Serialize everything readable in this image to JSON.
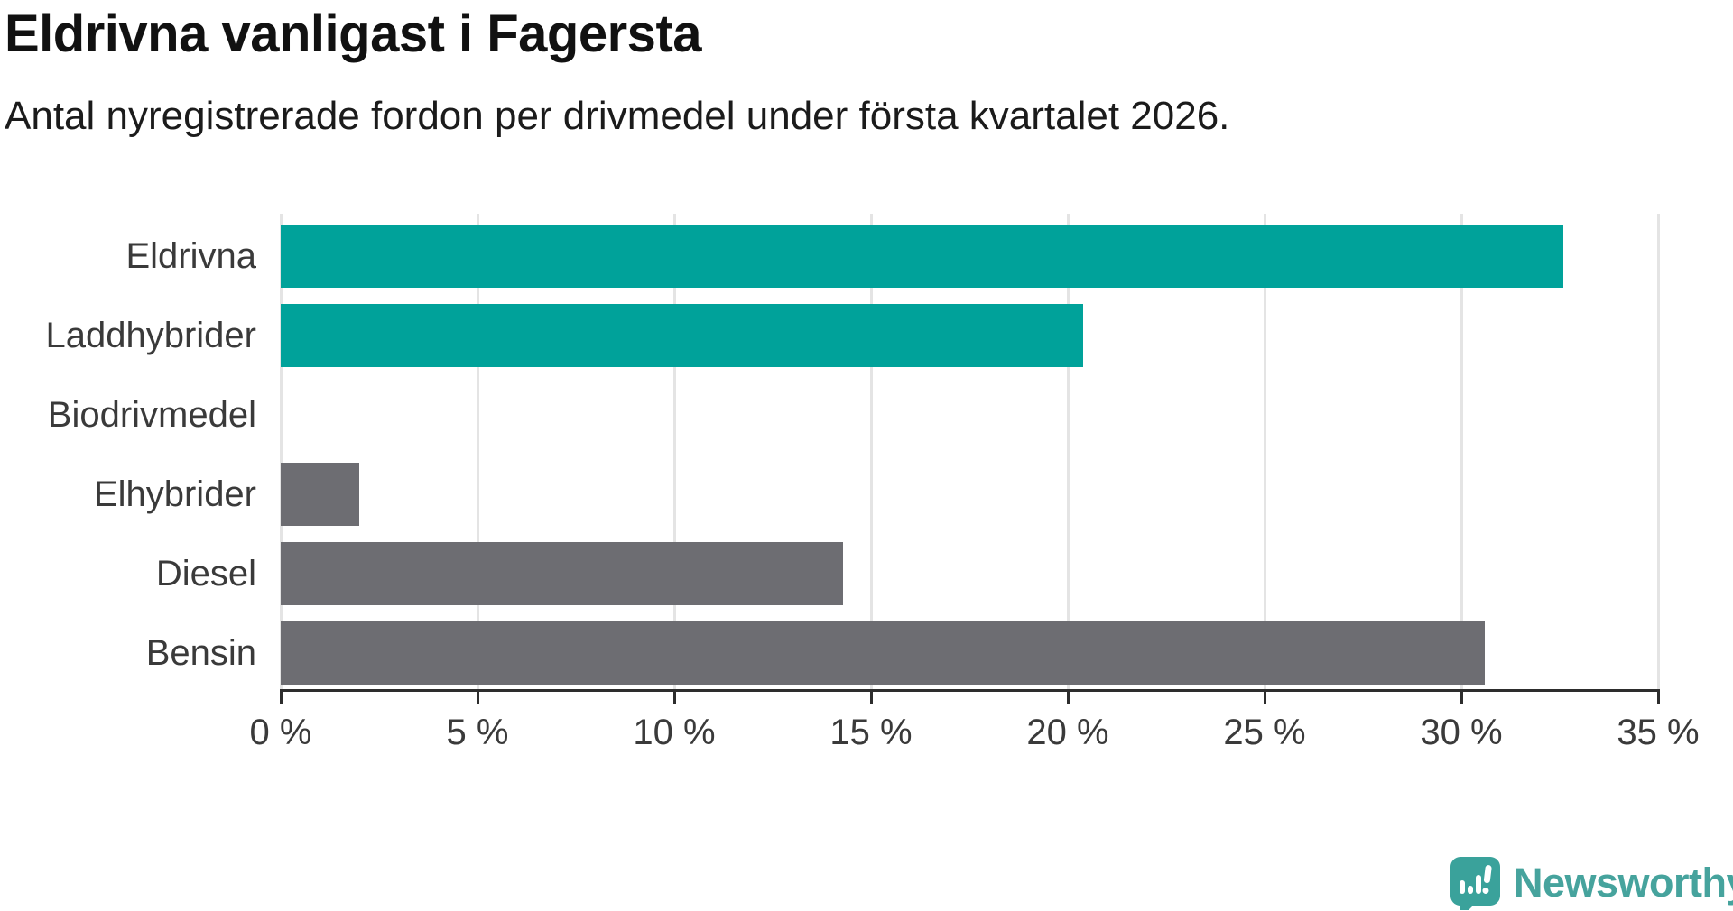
{
  "title": "Eldrivna vanligast i Fagersta",
  "subtitle": "Antal nyregistrerade fordon per drivmedel under första kvartalet 2026.",
  "chart_data": {
    "type": "bar",
    "orientation": "horizontal",
    "categories": [
      "Eldrivna",
      "Laddhybrider",
      "Biodrivmedel",
      "Elhybrider",
      "Diesel",
      "Bensin"
    ],
    "values": [
      32.6,
      20.4,
      0,
      2.0,
      14.3,
      30.6
    ],
    "bar_colors": [
      "#00a29a",
      "#00a29a",
      "#6d6d72",
      "#6d6d72",
      "#6d6d72",
      "#6d6d72"
    ],
    "highlight_color": "#00a29a",
    "default_color": "#6d6d72",
    "title": "Eldrivna vanligast i Fagersta",
    "xlabel": "",
    "ylabel": "",
    "xlim": [
      0,
      35
    ],
    "x_ticks": [
      0,
      5,
      10,
      15,
      20,
      25,
      30,
      35
    ],
    "x_tick_labels": [
      "0 %",
      "5 %",
      "10 %",
      "15 %",
      "20 %",
      "25 %",
      "30 %",
      "35 %"
    ],
    "grid": true,
    "legend": "none",
    "gridline_color": "#e4e4e4",
    "axis_color": "#2d2d2d",
    "label_color": "#3a3a3a"
  },
  "branding": {
    "logo_text": "Newsworthy",
    "logo_text_color": "#46a39d",
    "logo_icon_color": "#3aa29b",
    "logo_icon": "newsworthy-speech-bubble-chart-icon"
  }
}
